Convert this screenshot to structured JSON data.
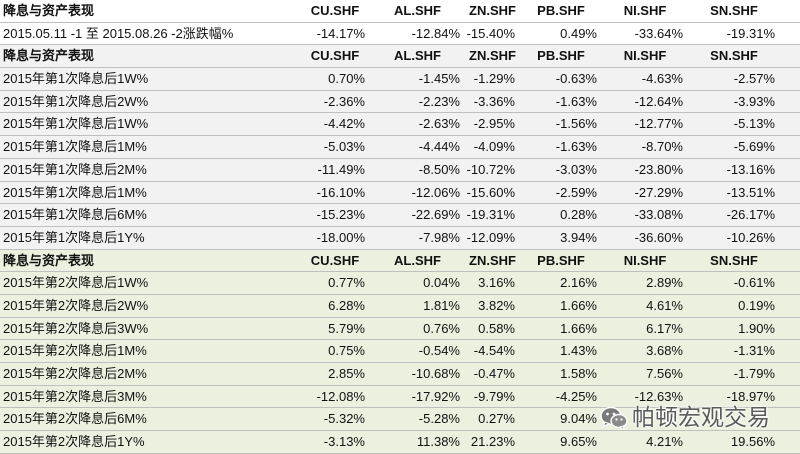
{
  "table": {
    "columns": [
      "降息与资产表现",
      "CU.SHF",
      "AL.SHF",
      "ZN.SHF",
      "PB.SHF",
      "NI.SHF",
      "SN.SHF"
    ],
    "sections": [
      {
        "rows": [
          {
            "label": "2015.05.11 -1 至 2015.08.26 -2涨跌幅%",
            "values": [
              "-14.17%",
              "-12.84%",
              "-15.40%",
              "0.49%",
              "-33.64%",
              "-19.31%"
            ]
          }
        ]
      },
      {
        "rows": [
          {
            "label": "2015年第1次降息后1W%",
            "values": [
              "0.70%",
              "-1.45%",
              "-1.29%",
              "-0.63%",
              "-4.63%",
              "-2.57%"
            ]
          },
          {
            "label": "2015年第1次降息后2W%",
            "values": [
              "-2.36%",
              "-2.23%",
              "-3.36%",
              "-1.63%",
              "-12.64%",
              "-3.93%"
            ]
          },
          {
            "label": "2015年第1次降息后1W%",
            "values": [
              "-4.42%",
              "-2.63%",
              "-2.95%",
              "-1.56%",
              "-12.77%",
              "-5.13%"
            ]
          },
          {
            "label": "2015年第1次降息后1M%",
            "values": [
              "-5.03%",
              "-4.44%",
              "-4.09%",
              "-1.63%",
              "-8.70%",
              "-5.69%"
            ]
          },
          {
            "label": "2015年第1次降息后2M%",
            "values": [
              "-11.49%",
              "-8.50%",
              "-10.72%",
              "-3.03%",
              "-23.80%",
              "-13.16%"
            ]
          },
          {
            "label": "2015年第1次降息后1M%",
            "values": [
              "-16.10%",
              "-12.06%",
              "-15.60%",
              "-2.59%",
              "-27.29%",
              "-13.51%"
            ]
          },
          {
            "label": "2015年第1次降息后6M%",
            "values": [
              "-15.23%",
              "-22.69%",
              "-19.31%",
              "0.28%",
              "-33.08%",
              "-26.17%"
            ]
          },
          {
            "label": "2015年第1次降息后1Y%",
            "values": [
              "-18.00%",
              "-7.98%",
              "-12.09%",
              "3.94%",
              "-36.60%",
              "-10.26%"
            ]
          }
        ]
      },
      {
        "rows": [
          {
            "label": "2015年第2次降息后1W%",
            "values": [
              "0.77%",
              "0.04%",
              "3.16%",
              "2.16%",
              "2.89%",
              "-0.61%"
            ]
          },
          {
            "label": "2015年第2次降息后2W%",
            "values": [
              "6.28%",
              "1.81%",
              "3.82%",
              "1.66%",
              "4.61%",
              "0.19%"
            ]
          },
          {
            "label": "2015年第2次降息后3W%",
            "values": [
              "5.79%",
              "0.76%",
              "0.58%",
              "1.66%",
              "6.17%",
              "1.90%"
            ]
          },
          {
            "label": "2015年第2次降息后1M%",
            "values": [
              "0.75%",
              "-0.54%",
              "-4.54%",
              "1.43%",
              "3.68%",
              "-1.31%"
            ]
          },
          {
            "label": "2015年第2次降息后2M%",
            "values": [
              "2.85%",
              "-10.68%",
              "-0.47%",
              "1.58%",
              "7.56%",
              "-1.79%"
            ]
          },
          {
            "label": "2015年第2次降息后3M%",
            "values": [
              "-12.08%",
              "-17.92%",
              "-9.79%",
              "-4.25%",
              "-12.63%",
              "-18.97%"
            ]
          },
          {
            "label": "2015年第2次降息后6M%",
            "values": [
              "-5.32%",
              "-5.28%",
              "0.27%",
              "9.04%",
              "",
              ""
            ]
          },
          {
            "label": "2015年第2次降息后1Y%",
            "values": [
              "-3.13%",
              "11.38%",
              "21.23%",
              "9.65%",
              "4.21%",
              "19.56%"
            ]
          }
        ]
      }
    ]
  },
  "colors": {
    "section_1_bg": "#ffffff",
    "section_2_bg": "#f2f2f2",
    "section_3_bg": "#ebf1de",
    "text": "#111111",
    "border": "#bfbfbf"
  },
  "watermark": {
    "icon": "wechat-icon",
    "text": "帕顿宏观交易"
  }
}
